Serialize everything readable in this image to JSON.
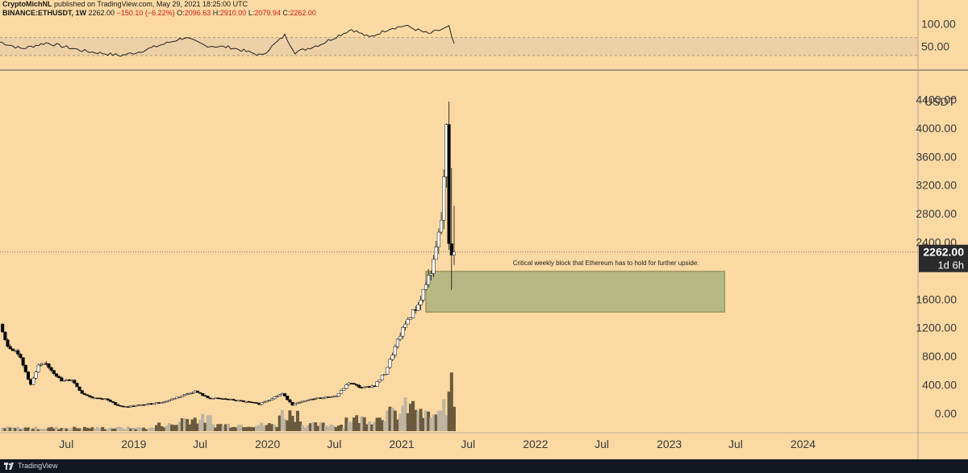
{
  "header": {
    "author": "CryptoMichNL",
    "published": " published on TradingView.com, May 29, 2021 18:25:00 UTC",
    "symbol": "BINANCE:ETHUSDT, 1W",
    "last": "2262.00",
    "change": "−150.10 (−6.22%)",
    "open_label": "O:",
    "open": "2096.63",
    "high_label": "H:",
    "high": "2910.00",
    "low_label": "L:",
    "low": "2079.94",
    "close_label": "C:",
    "close": "2262.00"
  },
  "footer": {
    "brand": "TradingView"
  },
  "colors": {
    "background": "#fad9a3",
    "candle_up": "#ffffff",
    "candle_down": "#000000",
    "zone_fill": "#b5b882",
    "price_tag": "#2b2b2b"
  },
  "rsi": {
    "ticks": [
      "100.00",
      "50.00"
    ],
    "tick_values": [
      100,
      50
    ],
    "band": [
      30,
      70
    ]
  },
  "price_axis": {
    "unit": "USDT",
    "ticks": [
      "4400.00",
      "4000.00",
      "3600.00",
      "3200.00",
      "2800.00",
      "2400.00",
      "1600.00",
      "1200.00",
      "800.00",
      "400.00",
      "0.00"
    ],
    "current_price": "2262.00",
    "countdown": "1d 6h"
  },
  "time_axis": {
    "labels": [
      "Jul",
      "2019",
      "Jul",
      "2020",
      "Jul",
      "2021",
      "Jul",
      "2022",
      "Jul",
      "2023",
      "Jul",
      "2024"
    ]
  },
  "annotation": {
    "text": "Critical weekly block that Ethereum has to hold for further upside.",
    "zone_low": 1420,
    "zone_high": 1990
  },
  "chart_data": {
    "type": "candlestick",
    "symbol": "BINANCE:ETHUSDT",
    "timeframe": "1W",
    "ylim": [
      -250,
      4700
    ],
    "xlim": [
      "2018-01-01",
      "2024-10-01"
    ],
    "price_keypoints": [
      [
        "2018-01-08",
        1250
      ],
      [
        "2018-01-29",
        950
      ],
      [
        "2018-02-26",
        850
      ],
      [
        "2018-04-02",
        400
      ],
      [
        "2018-04-23",
        660
      ],
      [
        "2018-05-14",
        690
      ],
      [
        "2018-06-25",
        450
      ],
      [
        "2018-07-23",
        470
      ],
      [
        "2018-08-20",
        280
      ],
      [
        "2018-09-17",
        220
      ],
      [
        "2018-10-22",
        200
      ],
      [
        "2018-11-26",
        110
      ],
      [
        "2018-12-17",
        90
      ],
      [
        "2019-02-04",
        120
      ],
      [
        "2019-04-01",
        160
      ],
      [
        "2019-05-20",
        250
      ],
      [
        "2019-06-24",
        310
      ],
      [
        "2019-07-29",
        215
      ],
      [
        "2019-09-16",
        200
      ],
      [
        "2019-11-25",
        150
      ],
      [
        "2019-12-16",
        130
      ],
      [
        "2020-02-17",
        275
      ],
      [
        "2020-03-16",
        120
      ],
      [
        "2020-05-11",
        205
      ],
      [
        "2020-07-13",
        240
      ],
      [
        "2020-08-17",
        430
      ],
      [
        "2020-09-21",
        355
      ],
      [
        "2020-10-26",
        390
      ],
      [
        "2020-11-23",
        560
      ],
      [
        "2021-01-04",
        1100
      ],
      [
        "2021-01-25",
        1320
      ],
      [
        "2021-02-22",
        1520
      ],
      [
        "2021-03-15",
        1820
      ],
      [
        "2021-04-05",
        2100
      ],
      [
        "2021-04-26",
        2700
      ],
      [
        "2021-05-10",
        3950
      ],
      [
        "2021-05-17",
        2400
      ],
      [
        "2021-05-24",
        2262
      ]
    ],
    "rsi_keypoints": [
      [
        "2018-01-01",
        60
      ],
      [
        "2018-03-01",
        45
      ],
      [
        "2018-05-07",
        58
      ],
      [
        "2018-08-20",
        40
      ],
      [
        "2018-11-26",
        30
      ],
      [
        "2019-01-14",
        38
      ],
      [
        "2019-05-20",
        70
      ],
      [
        "2019-07-15",
        52
      ],
      [
        "2019-09-23",
        48
      ],
      [
        "2019-12-16",
        30
      ],
      [
        "2020-02-17",
        75
      ],
      [
        "2020-03-16",
        37
      ],
      [
        "2020-05-25",
        55
      ],
      [
        "2020-08-17",
        88
      ],
      [
        "2020-10-05",
        70
      ],
      [
        "2020-11-30",
        90
      ],
      [
        "2021-01-11",
        96
      ],
      [
        "2021-03-15",
        78
      ],
      [
        "2021-05-10",
        93
      ],
      [
        "2021-05-24",
        53
      ]
    ],
    "volume_scale_max": 1000,
    "volume_note": "Weekly volume bars drawn at the bottom of the main pane, peaking in Feb–May 2021."
  }
}
